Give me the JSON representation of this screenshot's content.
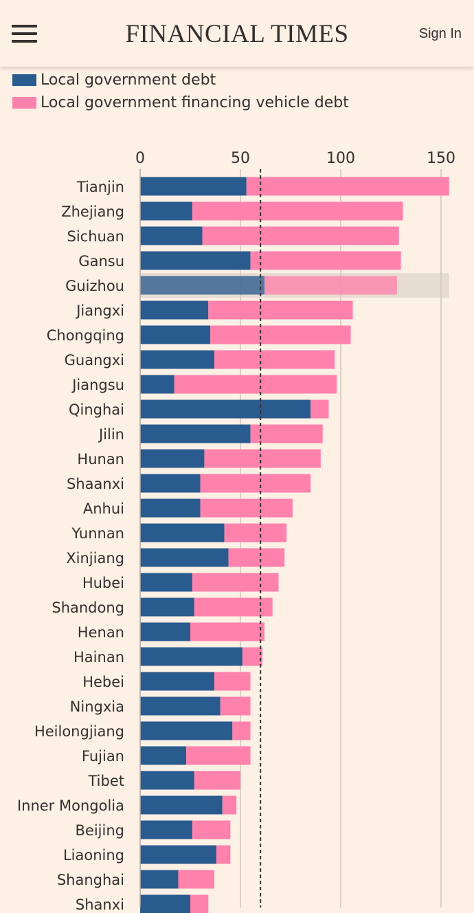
{
  "header": {
    "masthead": "FINANCIAL TIMES",
    "sign_in": "Sign In",
    "menu_icon": "hamburger-menu-icon"
  },
  "colors": {
    "background": "#fdf0e5",
    "local_government_debt": "#2a5b8f",
    "lgfv_debt": "#ff82ad",
    "text": "#33302e",
    "highlight_row": "#e6dcd2"
  },
  "chart_data": {
    "type": "bar",
    "orientation": "horizontal",
    "stacked": true,
    "legend": [
      "Local government debt",
      "Local government financing vehicle debt"
    ],
    "legend_position": "top-left",
    "x_ticks": [
      "0",
      "50",
      "100",
      "150"
    ],
    "xlim": [
      0,
      155
    ],
    "grid": true,
    "reference_line": 60,
    "highlighted_category": "Guizhou",
    "categories": [
      "Tianjin",
      "Zhejiang",
      "Sichuan",
      "Gansu",
      "Guizhou",
      "Jiangxi",
      "Chongqing",
      "Guangxi",
      "Jiangsu",
      "Qinghai",
      "Jilin",
      "Hunan",
      "Shaanxi",
      "Anhui",
      "Yunnan",
      "Xinjiang",
      "Hubei",
      "Shandong",
      "Henan",
      "Hainan",
      "Hebei",
      "Ningxia",
      "Heilongjiang",
      "Fujian",
      "Tibet",
      "Inner Mongolia",
      "Beijing",
      "Liaoning",
      "Shanghai",
      "Shanxi"
    ],
    "series": [
      {
        "name": "Local government debt",
        "values": [
          53,
          26,
          31,
          55,
          62,
          34,
          35,
          37,
          17,
          85,
          55,
          32,
          30,
          30,
          42,
          44,
          26,
          27,
          25,
          51,
          37,
          40,
          46,
          23,
          27,
          41,
          26,
          38,
          19,
          25
        ]
      },
      {
        "name": "Local government financing vehicle debt",
        "values": [
          101,
          105,
          98,
          75,
          66,
          72,
          70,
          60,
          81,
          9,
          36,
          58,
          55,
          46,
          31,
          28,
          43,
          39,
          37,
          10,
          18,
          15,
          9,
          32,
          23,
          7,
          19,
          7,
          18,
          9
        ]
      }
    ]
  }
}
